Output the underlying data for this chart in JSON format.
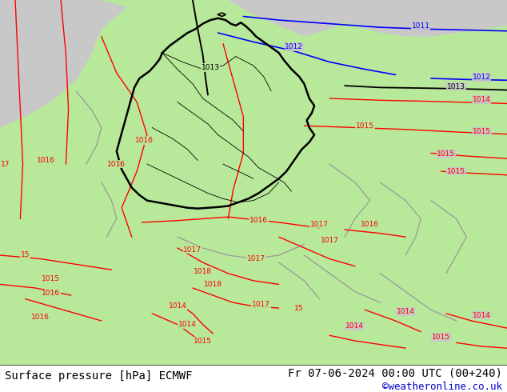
{
  "bottom_left_text": "Surface pressure [hPa] ECMWF",
  "bottom_right_text": "Fr 07-06-2024 00:00 UTC (00+240)",
  "bottom_credit": "©weatheronline.co.uk",
  "bg_gray": "#c8c8c8",
  "bg_green": "#b8e89a",
  "bg_white": "#ffffff",
  "red": "#ff0000",
  "blue": "#0000ff",
  "black": "#000000",
  "gray_contour": "#888888",
  "credit_color": "#0000cc",
  "fig_width": 6.34,
  "fig_height": 4.9,
  "dpi": 100
}
